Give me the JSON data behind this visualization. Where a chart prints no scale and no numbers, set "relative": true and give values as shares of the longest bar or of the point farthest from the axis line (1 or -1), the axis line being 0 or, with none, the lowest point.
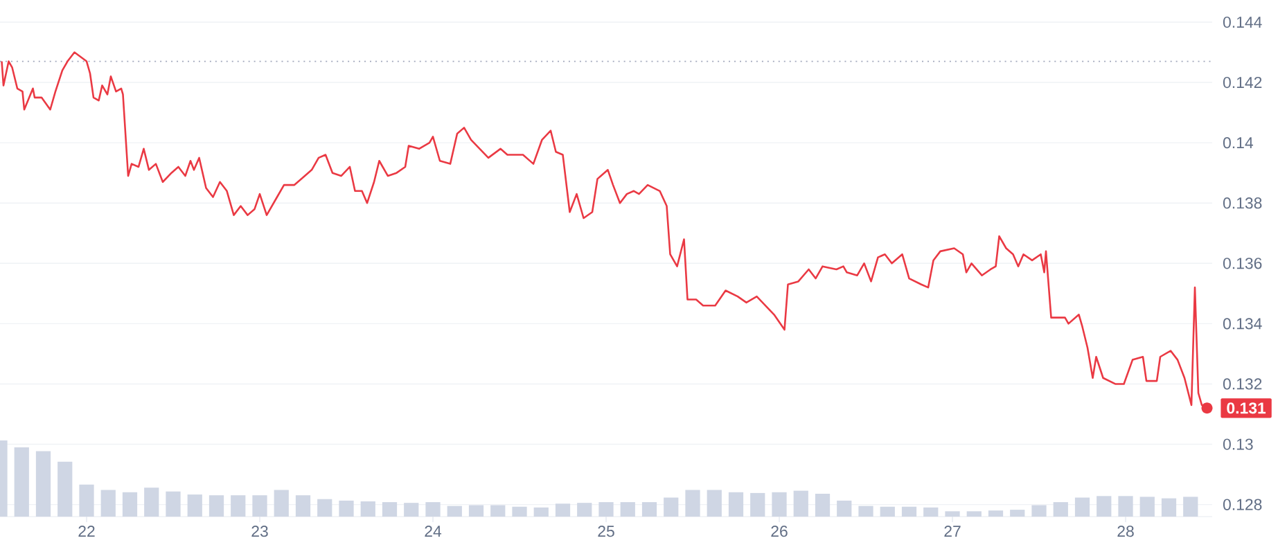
{
  "chart_data": [
    {
      "type": "line",
      "xlim": [
        21.5,
        28.5
      ],
      "ylim": [
        0.1276,
        0.144
      ],
      "xticks": [
        22,
        23,
        24,
        25,
        26,
        27,
        28
      ],
      "yticks": [
        0.128,
        0.13,
        0.132,
        0.134,
        0.136,
        0.138,
        0.14,
        0.142,
        0.144
      ],
      "grid": "y",
      "series": [
        {
          "color": "#ea3943",
          "x": [
            21.51,
            21.52,
            21.55,
            21.57,
            21.6,
            21.63,
            21.64,
            21.69,
            21.7,
            21.74,
            21.79,
            21.82,
            21.86,
            21.89,
            21.93,
            22.0,
            22.02,
            22.04,
            22.07,
            22.09,
            22.12,
            22.14,
            22.17,
            22.2,
            22.21,
            22.24,
            22.26,
            22.3,
            22.33,
            22.36,
            22.4,
            22.44,
            22.49,
            22.53,
            22.57,
            22.6,
            22.62,
            22.65,
            22.69,
            22.73,
            22.77,
            22.81,
            22.85,
            22.89,
            22.93,
            22.97,
            23.0,
            23.04,
            23.1,
            23.14,
            23.2,
            23.26,
            23.3,
            23.34,
            23.38,
            23.42,
            23.47,
            23.52,
            23.55,
            23.59,
            23.62,
            23.66,
            23.69,
            23.74,
            23.79,
            23.84,
            23.86,
            23.92,
            23.98,
            24.0,
            24.04,
            24.1,
            24.14,
            24.18,
            24.22,
            24.32,
            24.39,
            24.43,
            24.52,
            24.58,
            24.63,
            24.68,
            24.71,
            24.75,
            24.79,
            24.83,
            24.87,
            24.92,
            24.95,
            25.01,
            25.04,
            25.08,
            25.12,
            25.16,
            25.19,
            25.24,
            25.31,
            25.35,
            25.37,
            25.41,
            25.45,
            25.47,
            25.52,
            25.56,
            25.63,
            25.69,
            25.76,
            25.81,
            25.87,
            25.97,
            26.03,
            26.05,
            26.11,
            26.17,
            26.21,
            26.25,
            26.33,
            26.37,
            26.39,
            26.45,
            26.49,
            26.53,
            26.57,
            26.61,
            26.65,
            26.71,
            26.75,
            26.82,
            26.86,
            26.89,
            26.93,
            27.01,
            27.06,
            27.08,
            27.11,
            27.17,
            27.22,
            27.25,
            27.27,
            27.31,
            27.35,
            27.38,
            27.41,
            27.46,
            27.51,
            27.53,
            27.54,
            27.57,
            27.65,
            27.67,
            27.73,
            27.75,
            27.78,
            27.81,
            27.83,
            27.87,
            27.94,
            27.99,
            28.04,
            28.1,
            28.12,
            28.18,
            28.2,
            28.26,
            28.3,
            28.34,
            28.38,
            28.4,
            28.42,
            28.44,
            28.47
          ],
          "values": [
            0.1427,
            0.1419,
            0.1427,
            0.1425,
            0.1418,
            0.1417,
            0.1411,
            0.1418,
            0.1415,
            0.1415,
            0.1411,
            0.1417,
            0.1424,
            0.1427,
            0.143,
            0.1427,
            0.1423,
            0.1415,
            0.1414,
            0.1419,
            0.1416,
            0.1422,
            0.1417,
            0.1418,
            0.1416,
            0.1389,
            0.1393,
            0.1392,
            0.1398,
            0.1391,
            0.1393,
            0.1387,
            0.139,
            0.1392,
            0.1389,
            0.1394,
            0.1391,
            0.1395,
            0.1385,
            0.1382,
            0.1387,
            0.1384,
            0.1376,
            0.1379,
            0.1376,
            0.1378,
            0.1383,
            0.1376,
            0.1382,
            0.1386,
            0.1386,
            0.1389,
            0.1391,
            0.1395,
            0.1396,
            0.139,
            0.1389,
            0.1392,
            0.1384,
            0.1384,
            0.138,
            0.1387,
            0.1394,
            0.1389,
            0.139,
            0.1392,
            0.1399,
            0.1398,
            0.14,
            0.1402,
            0.1394,
            0.1393,
            0.1403,
            0.1405,
            0.1401,
            0.1395,
            0.1398,
            0.1396,
            0.1396,
            0.1393,
            0.1401,
            0.1404,
            0.1397,
            0.1396,
            0.1377,
            0.1383,
            0.1375,
            0.1377,
            0.1388,
            0.1391,
            0.1386,
            0.138,
            0.1383,
            0.1384,
            0.1383,
            0.1386,
            0.1384,
            0.1379,
            0.1363,
            0.1359,
            0.1368,
            0.1348,
            0.1348,
            0.1346,
            0.1346,
            0.1351,
            0.1349,
            0.1347,
            0.1349,
            0.1343,
            0.1338,
            0.1353,
            0.1354,
            0.1358,
            0.1355,
            0.1359,
            0.1358,
            0.1359,
            0.1357,
            0.1356,
            0.136,
            0.1354,
            0.1362,
            0.1363,
            0.136,
            0.1363,
            0.1355,
            0.1353,
            0.1352,
            0.1361,
            0.1364,
            0.1365,
            0.1363,
            0.1357,
            0.136,
            0.1356,
            0.1358,
            0.1359,
            0.1369,
            0.1365,
            0.1363,
            0.1359,
            0.1363,
            0.1361,
            0.1363,
            0.1357,
            0.1364,
            0.1342,
            0.1342,
            0.134,
            0.1343,
            0.1339,
            0.1332,
            0.1322,
            0.1329,
            0.1322,
            0.132,
            0.132,
            0.1328,
            0.1329,
            0.1321,
            0.1321,
            0.1329,
            0.1331,
            0.1328,
            0.1322,
            0.1313,
            0.1352,
            0.1317,
            0.1313,
            0.1312
          ]
        }
      ],
      "ref_lines": [
        {
          "axis": "y",
          "value": 0.1427,
          "color": "#a1a7bb",
          "line_style": "dotted"
        }
      ],
      "annotations": [
        {
          "text": "0.131",
          "x": 28.47,
          "y": 0.1312
        }
      ]
    },
    {
      "type": "bar",
      "relative": true,
      "xlim": [
        21.5,
        28.5
      ],
      "series": [
        {
          "color": "#cfd6e4",
          "x": [
            21.5,
            21.625,
            21.75,
            21.875,
            22.0,
            22.125,
            22.25,
            22.375,
            22.5,
            22.625,
            22.75,
            22.875,
            23.0,
            23.125,
            23.25,
            23.375,
            23.5,
            23.625,
            23.75,
            23.875,
            24.0,
            24.125,
            24.25,
            24.375,
            24.5,
            24.625,
            24.75,
            24.875,
            25.0,
            25.125,
            25.25,
            25.375,
            25.5,
            25.625,
            25.75,
            25.875,
            26.0,
            26.125,
            26.25,
            26.375,
            26.5,
            26.625,
            26.75,
            26.875,
            27.0,
            27.125,
            27.25,
            27.375,
            27.5,
            27.625,
            27.75,
            27.875,
            28.0,
            28.125,
            28.25,
            28.375
          ],
          "values": [
            1.0,
            0.91,
            0.86,
            0.72,
            0.42,
            0.35,
            0.32,
            0.38,
            0.33,
            0.29,
            0.28,
            0.28,
            0.28,
            0.35,
            0.28,
            0.23,
            0.21,
            0.2,
            0.19,
            0.18,
            0.19,
            0.14,
            0.15,
            0.15,
            0.13,
            0.12,
            0.17,
            0.18,
            0.19,
            0.19,
            0.19,
            0.25,
            0.35,
            0.35,
            0.32,
            0.31,
            0.32,
            0.34,
            0.3,
            0.21,
            0.14,
            0.13,
            0.13,
            0.12,
            0.07,
            0.07,
            0.08,
            0.09,
            0.15,
            0.19,
            0.25,
            0.27,
            0.27,
            0.26,
            0.24,
            0.26
          ]
        }
      ]
    }
  ]
}
